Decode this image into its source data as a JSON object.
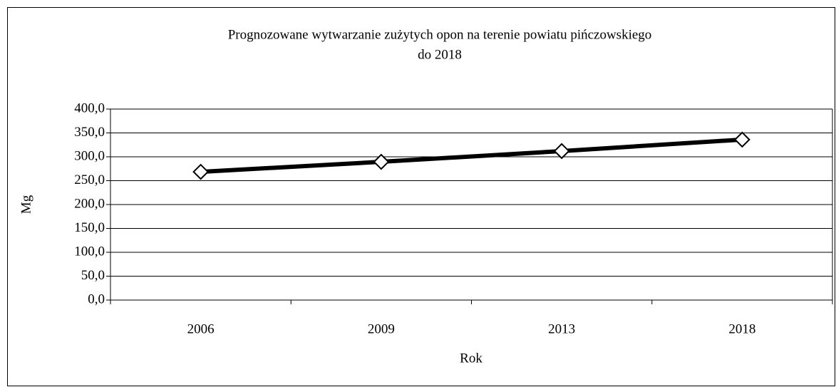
{
  "chart_data": {
    "type": "line",
    "title": [
      "Prognozowane wytwarzanie zużytych opon na terenie powiatu pińczowskiego",
      "do 2018"
    ],
    "x_label": "Rok",
    "y_label": "Mg",
    "categories": [
      "2006",
      "2009",
      "2013",
      "2018"
    ],
    "values": [
      268.5,
      289.5,
      312,
      336
    ],
    "color": "#000000",
    "ylim": [
      0,
      400
    ],
    "yticks": [
      {
        "value": 0,
        "label": "0,0"
      },
      {
        "value": 50,
        "label": "50,0"
      },
      {
        "value": 100,
        "label": "100,0"
      },
      {
        "value": 150,
        "label": "150,0"
      },
      {
        "value": 200,
        "label": "200,0"
      },
      {
        "value": 250,
        "label": "250,0"
      },
      {
        "value": 300,
        "label": "300,0"
      },
      {
        "value": 350,
        "label": "350,0"
      },
      {
        "value": 400,
        "label": "400,0"
      }
    ],
    "grid": true
  }
}
